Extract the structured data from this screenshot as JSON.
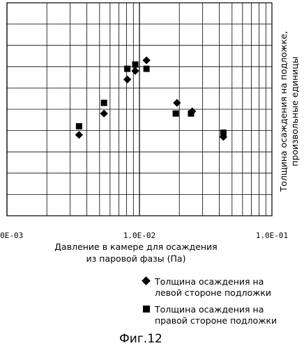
{
  "chart_data": {
    "type": "scatter",
    "x_scale": "log",
    "xlim": [
      0.001,
      0.1
    ],
    "x_ticks": [
      "1.0E-03",
      "1.0E-02",
      "1.0E-01"
    ],
    "xlabel": [
      "Давление в камере для осаждения",
      "из паровой фазы (Па)"
    ],
    "ylabel": [
      "Толщина осаждения на подложке,",
      "произвольные единицы"
    ],
    "ylim": [
      0,
      10
    ],
    "grid": true,
    "legend_position": "bottom-right, below plot",
    "series": [
      {
        "name": [
          "Толщина осаждения на",
          "левой стороне подложки"
        ],
        "marker": "diamond",
        "points": [
          {
            "x": 0.0035,
            "y": 3.8
          },
          {
            "x": 0.0054,
            "y": 4.8
          },
          {
            "x": 0.0081,
            "y": 6.4
          },
          {
            "x": 0.0093,
            "y": 6.8
          },
          {
            "x": 0.0113,
            "y": 7.3
          },
          {
            "x": 0.0192,
            "y": 5.3
          },
          {
            "x": 0.025,
            "y": 4.9
          },
          {
            "x": 0.043,
            "y": 3.7
          }
        ]
      },
      {
        "name": [
          "Толщина осаждения на",
          "правой стороне подложки"
        ],
        "marker": "square",
        "points": [
          {
            "x": 0.0035,
            "y": 4.2
          },
          {
            "x": 0.0054,
            "y": 5.3
          },
          {
            "x": 0.0081,
            "y": 6.9
          },
          {
            "x": 0.0093,
            "y": 7.1
          },
          {
            "x": 0.0113,
            "y": 6.9
          },
          {
            "x": 0.0188,
            "y": 4.8
          },
          {
            "x": 0.0245,
            "y": 4.8
          },
          {
            "x": 0.043,
            "y": 3.9
          }
        ]
      }
    ]
  },
  "caption": "Фиг.12"
}
